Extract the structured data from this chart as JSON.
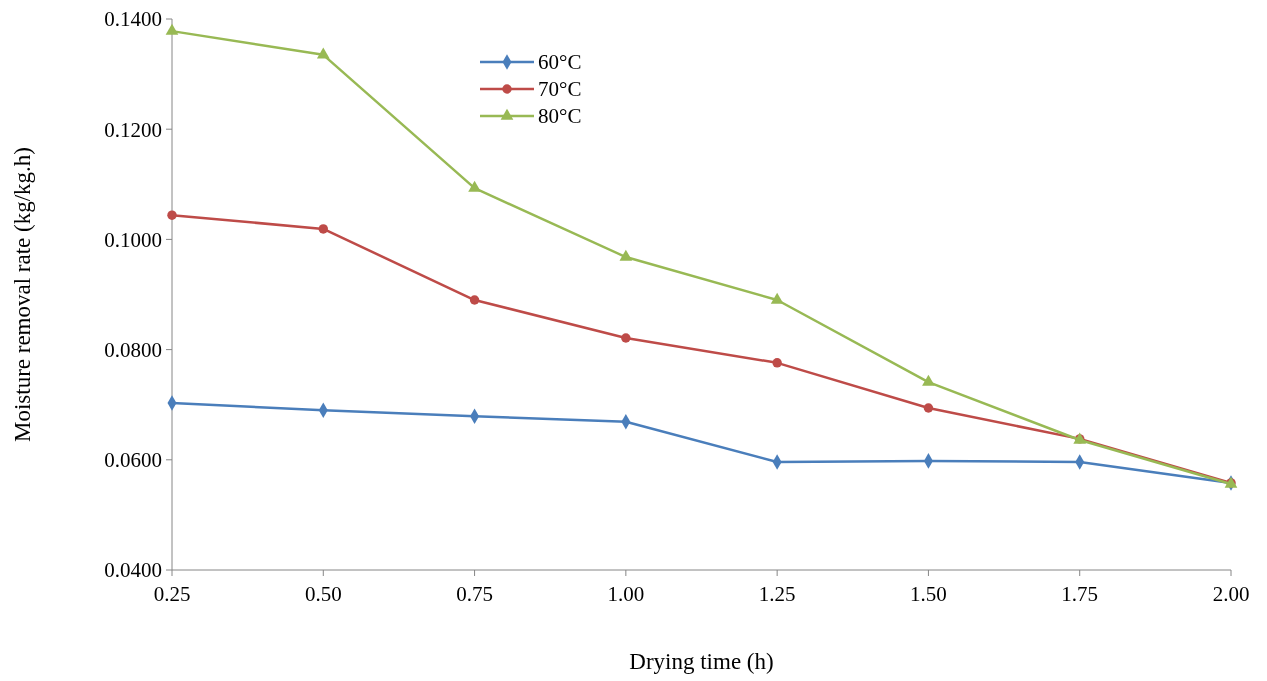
{
  "chart_data": {
    "type": "line",
    "xlabel": "Drying time (h)",
    "ylabel": "Moisture removal rate (kg/kg.h)",
    "x": [
      0.25,
      0.5,
      0.75,
      1.0,
      1.25,
      1.5,
      1.75,
      2.0
    ],
    "xlim": [
      0.25,
      2.0
    ],
    "xticks": [
      {
        "value": 0.25,
        "label": "0.25"
      },
      {
        "value": 0.5,
        "label": "0.50"
      },
      {
        "value": 0.75,
        "label": "0.75"
      },
      {
        "value": 1,
        "label": "1.00"
      },
      {
        "value": 1.25,
        "label": "1.25"
      },
      {
        "value": 1.5,
        "label": "1.50"
      },
      {
        "value": 1.75,
        "label": "1.75"
      },
      {
        "value": 2,
        "label": "2.00"
      }
    ],
    "ylim": [
      0.04,
      0.14
    ],
    "yticks": [
      {
        "value": 0.04,
        "label": "0.0400"
      },
      {
        "value": 0.06,
        "label": "0.0600"
      },
      {
        "value": 0.08,
        "label": "0.0800"
      },
      {
        "value": 0.1,
        "label": "0.1000"
      },
      {
        "value": 0.12,
        "label": "0.1200"
      },
      {
        "value": 0.14,
        "label": "0.1400"
      }
    ],
    "grid": false,
    "legend": "top",
    "line_style": "solid",
    "series": [
      {
        "name": "60°C",
        "color": "#4a7ebb",
        "marker": "diamond",
        "values": [
          0.0703,
          0.069,
          0.0679,
          0.0669,
          0.0596,
          0.0598,
          0.0596,
          0.0558
        ]
      },
      {
        "name": "70°C",
        "color": "#be4b48",
        "marker": "circle",
        "values": [
          0.1044,
          0.1019,
          0.089,
          0.0821,
          0.0776,
          0.0694,
          0.0638,
          0.0558
        ]
      },
      {
        "name": "80°C",
        "color": "#98b954",
        "marker": "triangle",
        "values": [
          0.1378,
          0.1335,
          0.1093,
          0.0968,
          0.089,
          0.0741,
          0.0636,
          0.0556
        ]
      }
    ]
  }
}
